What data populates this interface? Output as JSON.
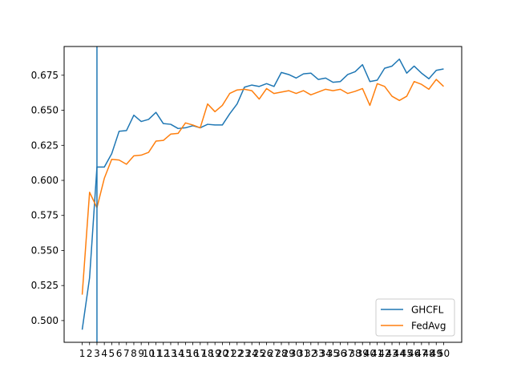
{
  "chart_data": {
    "type": "line",
    "title": "",
    "xlabel": "",
    "ylabel": "",
    "x": [
      1,
      2,
      3,
      4,
      5,
      6,
      7,
      8,
      9,
      10,
      11,
      12,
      13,
      14,
      15,
      16,
      17,
      18,
      19,
      20,
      21,
      22,
      23,
      24,
      25,
      26,
      27,
      28,
      29,
      30,
      31,
      32,
      33,
      34,
      35,
      36,
      37,
      38,
      39,
      40,
      41,
      42,
      43,
      44,
      45,
      46,
      47,
      48,
      49,
      50
    ],
    "xlim": [
      -1.45,
      52.45
    ],
    "ylim": [
      0.4845,
      0.6955
    ],
    "yticks": [
      0.5,
      0.525,
      0.55,
      0.575,
      0.6,
      0.625,
      0.65,
      0.675
    ],
    "ytick_labels": [
      "0.500",
      "0.525",
      "0.550",
      "0.575",
      "0.600",
      "0.625",
      "0.650",
      "0.675"
    ],
    "vline_x": 3,
    "legend_position": "lower-right",
    "grid": false,
    "series": [
      {
        "name": "GHCFL",
        "color": "#1f77b4",
        "values": [
          0.4935,
          0.5305,
          0.6095,
          0.6095,
          0.619,
          0.635,
          0.6355,
          0.6465,
          0.642,
          0.6435,
          0.6485,
          0.6405,
          0.64,
          0.637,
          0.6375,
          0.639,
          0.6375,
          0.64,
          0.6395,
          0.6395,
          0.6475,
          0.6545,
          0.6665,
          0.668,
          0.667,
          0.669,
          0.667,
          0.677,
          0.6755,
          0.673,
          0.676,
          0.6765,
          0.672,
          0.673,
          0.67,
          0.6705,
          0.6755,
          0.6775,
          0.6825,
          0.6705,
          0.6715,
          0.68,
          0.6815,
          0.6865,
          0.6765,
          0.6815,
          0.6765,
          0.6725,
          0.6785,
          0.6795
        ]
      },
      {
        "name": "FedAvg",
        "color": "#ff7f0e",
        "values": [
          0.5185,
          0.5915,
          0.5805,
          0.6015,
          0.615,
          0.6145,
          0.6115,
          0.6175,
          0.618,
          0.62,
          0.628,
          0.6285,
          0.633,
          0.6335,
          0.641,
          0.6395,
          0.6375,
          0.6545,
          0.649,
          0.6535,
          0.662,
          0.6645,
          0.665,
          0.664,
          0.658,
          0.6655,
          0.662,
          0.663,
          0.664,
          0.662,
          0.664,
          0.661,
          0.663,
          0.665,
          0.664,
          0.665,
          0.662,
          0.6635,
          0.6655,
          0.6535,
          0.669,
          0.667,
          0.66,
          0.657,
          0.66,
          0.6705,
          0.6685,
          0.665,
          0.672,
          0.667
        ]
      }
    ]
  }
}
